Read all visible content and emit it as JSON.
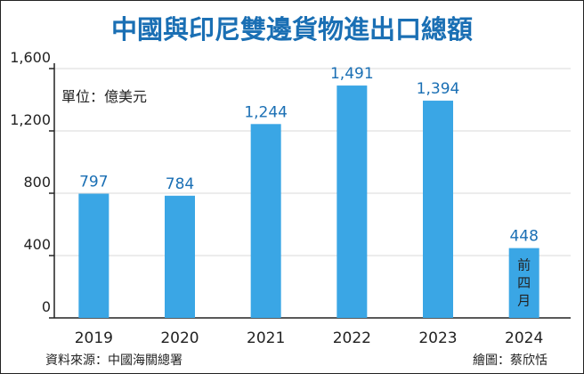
{
  "chart_data": {
    "type": "bar",
    "title": "中國與印尼雙邊貨物進出口總額",
    "unit_note": "單位：億美元",
    "categories": [
      "2019",
      "2020",
      "2021",
      "2022",
      "2023",
      "2024"
    ],
    "values": [
      797,
      784,
      1244,
      1491,
      1394,
      448
    ],
    "value_labels": [
      "797",
      "784",
      "1,244",
      "1,491",
      "1,394",
      "448"
    ],
    "bar_notes": [
      "",
      "",
      "",
      "",
      "",
      "前四月"
    ],
    "ylim": [
      0,
      1600
    ],
    "yticks": [
      0,
      400,
      800,
      1200,
      1600
    ],
    "ytick_labels": [
      "0",
      "400",
      "800",
      "1,200",
      "1,600"
    ],
    "grid": "horizontal",
    "source": "資料來源：中國海關總署",
    "credit": "繪圖：蔡欣恬",
    "colors": {
      "bar": "#3aa6e5",
      "title": "#1a6fb4",
      "label": "#1a6fb4",
      "grid": "#d9d9d9"
    }
  }
}
